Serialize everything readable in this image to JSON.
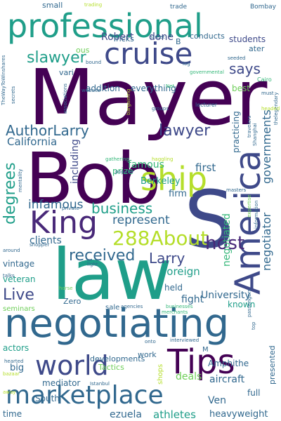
{
  "colors": {
    "background": "#ffffff",
    "palette": {
      "dark_purple": "#440154",
      "purple": "#482878",
      "indigo": "#3e4989",
      "slate": "#31688e",
      "teal": "#26828e",
      "green_teal": "#1f9e89",
      "green": "#35b779",
      "lime": "#6ece58",
      "yellow_green": "#b5de2b",
      "yellow": "#fde725"
    }
  },
  "words": [
    {
      "text": "Mayer",
      "color": "dark_purple"
    },
    {
      "text": "Bob",
      "color": "dark_purple"
    },
    {
      "text": "S",
      "color": "indigo"
    },
    {
      "text": "law",
      "color": "green_teal"
    },
    {
      "text": "negotiating",
      "color": "slate"
    },
    {
      "text": "professional",
      "color": "green_teal"
    },
    {
      "text": "cruise",
      "color": "indigo"
    },
    {
      "text": "ship",
      "color": "yellow_green"
    },
    {
      "text": "America",
      "color": "indigo"
    },
    {
      "text": "King",
      "color": "purple"
    },
    {
      "text": "Tips",
      "color": "dark_purple"
    },
    {
      "text": "world",
      "color": "indigo"
    },
    {
      "text": "marketplace",
      "color": "slate"
    },
    {
      "text": "288About",
      "color": "yellow_green"
    },
    {
      "text": "AuthorLarry",
      "color": "slate"
    },
    {
      "text": "lawyer",
      "color": "indigo"
    },
    {
      "text": "slawyer",
      "color": "green_teal"
    },
    {
      "text": "says",
      "color": "indigo"
    },
    {
      "text": "received",
      "color": "slate"
    },
    {
      "text": "business",
      "color": "green_teal"
    },
    {
      "text": "host",
      "color": "purple"
    },
    {
      "text": "Larry",
      "color": "indigo"
    },
    {
      "text": "degrees",
      "color": "green_teal"
    },
    {
      "text": "Live",
      "color": "indigo"
    },
    {
      "text": "infamous",
      "color": "slate"
    },
    {
      "text": "represent",
      "color": "slate"
    },
    {
      "text": "California",
      "color": "slate"
    },
    {
      "text": "negotiator",
      "color": "slate"
    },
    {
      "text": "governments",
      "color": "slate"
    },
    {
      "text": "negotiated",
      "color": "green"
    },
    {
      "text": "foreign",
      "color": "green_teal"
    },
    {
      "text": "University",
      "color": "slate"
    },
    {
      "text": "including",
      "color": "indigo"
    },
    {
      "text": "first",
      "color": "slate"
    },
    {
      "text": "famous",
      "color": "green"
    },
    {
      "text": "clients",
      "color": "slate"
    },
    {
      "text": "fight",
      "color": "slate"
    },
    {
      "text": "athletes",
      "color": "green_teal"
    },
    {
      "text": "heavyweight",
      "color": "slate"
    },
    {
      "text": "ezuela",
      "color": "slate"
    },
    {
      "text": "Ven",
      "color": "slate"
    },
    {
      "text": "deals",
      "color": "lime"
    },
    {
      "text": "aircraft",
      "color": "slate"
    },
    {
      "text": "practicing",
      "color": "slate"
    },
    {
      "text": "Robert",
      "color": "indigo"
    },
    {
      "text": "done",
      "color": "indigo"
    },
    {
      "text": "students",
      "color": "indigo"
    },
    {
      "text": "Berkeley",
      "color": "green_teal"
    },
    {
      "text": "firm",
      "color": "slate"
    },
    {
      "text": "prize",
      "color": "green"
    },
    {
      "text": "veteran",
      "color": "green_teal"
    },
    {
      "text": "vintage",
      "color": "slate"
    },
    {
      "text": "known",
      "color": "green_teal"
    },
    {
      "text": "held",
      "color": "slate"
    },
    {
      "text": "actors",
      "color": "green_teal"
    },
    {
      "text": "big",
      "color": "slate"
    },
    {
      "text": "Tactics",
      "color": "lime"
    },
    {
      "text": "developments",
      "color": "slate"
    },
    {
      "text": "work",
      "color": "slate"
    },
    {
      "text": "mediator",
      "color": "slate"
    },
    {
      "text": "South",
      "color": "slate"
    },
    {
      "text": "full",
      "color": "slate"
    },
    {
      "text": "time",
      "color": "slate"
    },
    {
      "text": "shops",
      "color": "yellow_green"
    },
    {
      "text": "presented",
      "color": "slate"
    },
    {
      "text": "Amphithe",
      "color": "slate"
    },
    {
      "text": "everything",
      "color": "slate"
    },
    {
      "text": "addition",
      "color": "slate"
    },
    {
      "text": "best",
      "color": "lime"
    },
    {
      "text": "conducts",
      "color": "slate"
    },
    {
      "text": "Tricks",
      "color": "slate"
    },
    {
      "text": "small",
      "color": "slate"
    },
    {
      "text": "trade",
      "color": "slate"
    },
    {
      "text": "ater",
      "color": "slate"
    },
    {
      "text": "Zero",
      "color": "slate"
    },
    {
      "text": "sale",
      "color": "slate"
    },
    {
      "text": "seminars",
      "color": "lime"
    },
    {
      "text": "ous",
      "color": "lime"
    },
    {
      "text": "vari",
      "color": "slate"
    },
    {
      "text": "B",
      "color": "slate"
    },
    {
      "text": "M",
      "color": "slate"
    },
    {
      "text": "Bombay",
      "color": "slate"
    },
    {
      "text": "Cairo",
      "color": "green"
    },
    {
      "text": "trading",
      "color": "yellow_green"
    },
    {
      "text": "street",
      "color": "slate"
    },
    {
      "text": "log",
      "color": "slate"
    },
    {
      "text": "seeded",
      "color": "slate"
    },
    {
      "text": "governmental",
      "color": "green"
    },
    {
      "text": "bound",
      "color": "slate"
    },
    {
      "text": "website",
      "color": "slate"
    },
    {
      "text": "Net",
      "color": "green"
    },
    {
      "text": "lecturer",
      "color": "slate"
    },
    {
      "text": "groups",
      "color": "slate"
    },
    {
      "text": "gathering",
      "color": "green"
    },
    {
      "text": "haggling",
      "color": "yellow_green"
    },
    {
      "text": "popular",
      "color": "slate"
    },
    {
      "text": "private",
      "color": "slate"
    },
    {
      "text": "shopper",
      "color": "slate"
    },
    {
      "text": "around",
      "color": "slate"
    },
    {
      "text": "talks",
      "color": "slate"
    },
    {
      "text": "light",
      "color": "slate"
    },
    {
      "text": "horse",
      "color": "lime"
    },
    {
      "text": "agencies",
      "color": "slate"
    },
    {
      "text": "businesses",
      "color": "green"
    },
    {
      "text": "merchants",
      "color": "green"
    },
    {
      "text": "interviewed",
      "color": "slate"
    },
    {
      "text": "onto",
      "color": "slate"
    },
    {
      "text": "hearted",
      "color": "slate"
    },
    {
      "text": "bazaar",
      "color": "yellow_green"
    },
    {
      "text": "Istanbul",
      "color": "slate"
    },
    {
      "text": "away",
      "color": "yellow_green"
    },
    {
      "text": "masters",
      "color": "slate"
    },
    {
      "text": "TheWayToWinshares",
      "color": "slate"
    },
    {
      "text": "associations",
      "color": "slate"
    },
    {
      "text": "secrets",
      "color": "slate"
    },
    {
      "text": "mentality",
      "color": "slate"
    },
    {
      "text": "bargaining",
      "color": "yellow_green"
    },
    {
      "text": "must",
      "color": "slate"
    },
    {
      "text": "thelegendary",
      "color": "slate"
    },
    {
      "text": "headed",
      "color": "yellow_green"
    },
    {
      "text": "travelers",
      "color": "slate"
    },
    {
      "text": "Shanghai",
      "color": "slate"
    },
    {
      "text": "expertise",
      "color": "lime"
    },
    {
      "text": "information",
      "color": "slate"
    },
    {
      "text": "passengers",
      "color": "slate"
    },
    {
      "text": "top",
      "color": "slate"
    }
  ]
}
